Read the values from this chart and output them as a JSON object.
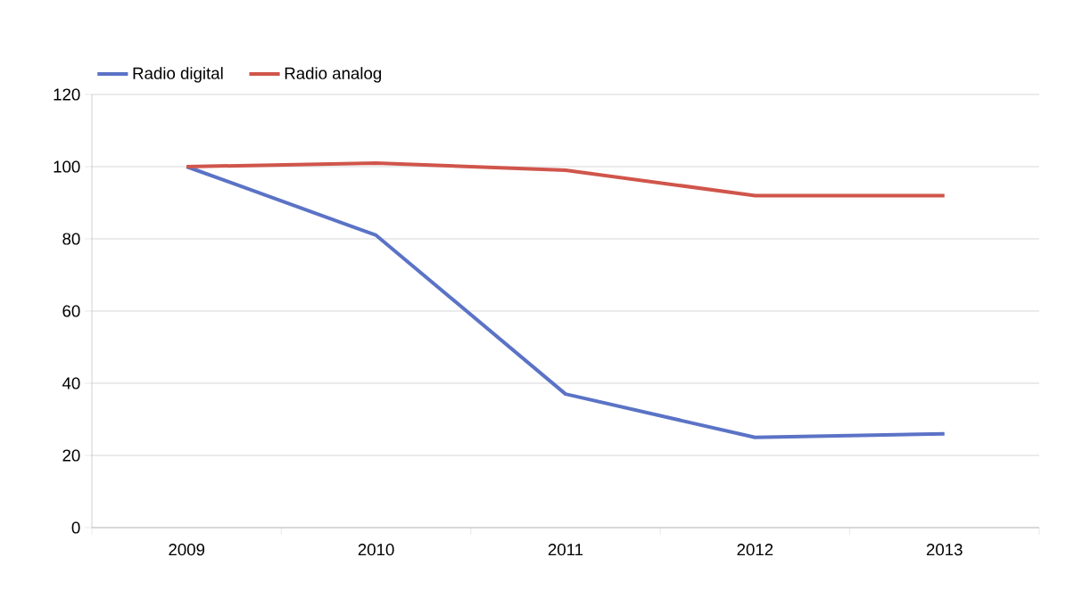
{
  "chart_data": {
    "type": "line",
    "categories": [
      "2009",
      "2010",
      "2011",
      "2012",
      "2013"
    ],
    "series": [
      {
        "name": "Radio digital",
        "color": "#5b73c6",
        "values": [
          100,
          81,
          37,
          25,
          26
        ]
      },
      {
        "name": "Radio analog",
        "color": "#d0554b",
        "values": [
          100,
          101,
          99,
          92,
          92
        ]
      }
    ],
    "ylim": [
      0,
      120
    ],
    "yticks": [
      0,
      20,
      40,
      60,
      80,
      100,
      120
    ],
    "grid": "y",
    "legend": "top left",
    "marker": "none",
    "line_style": "solid"
  }
}
